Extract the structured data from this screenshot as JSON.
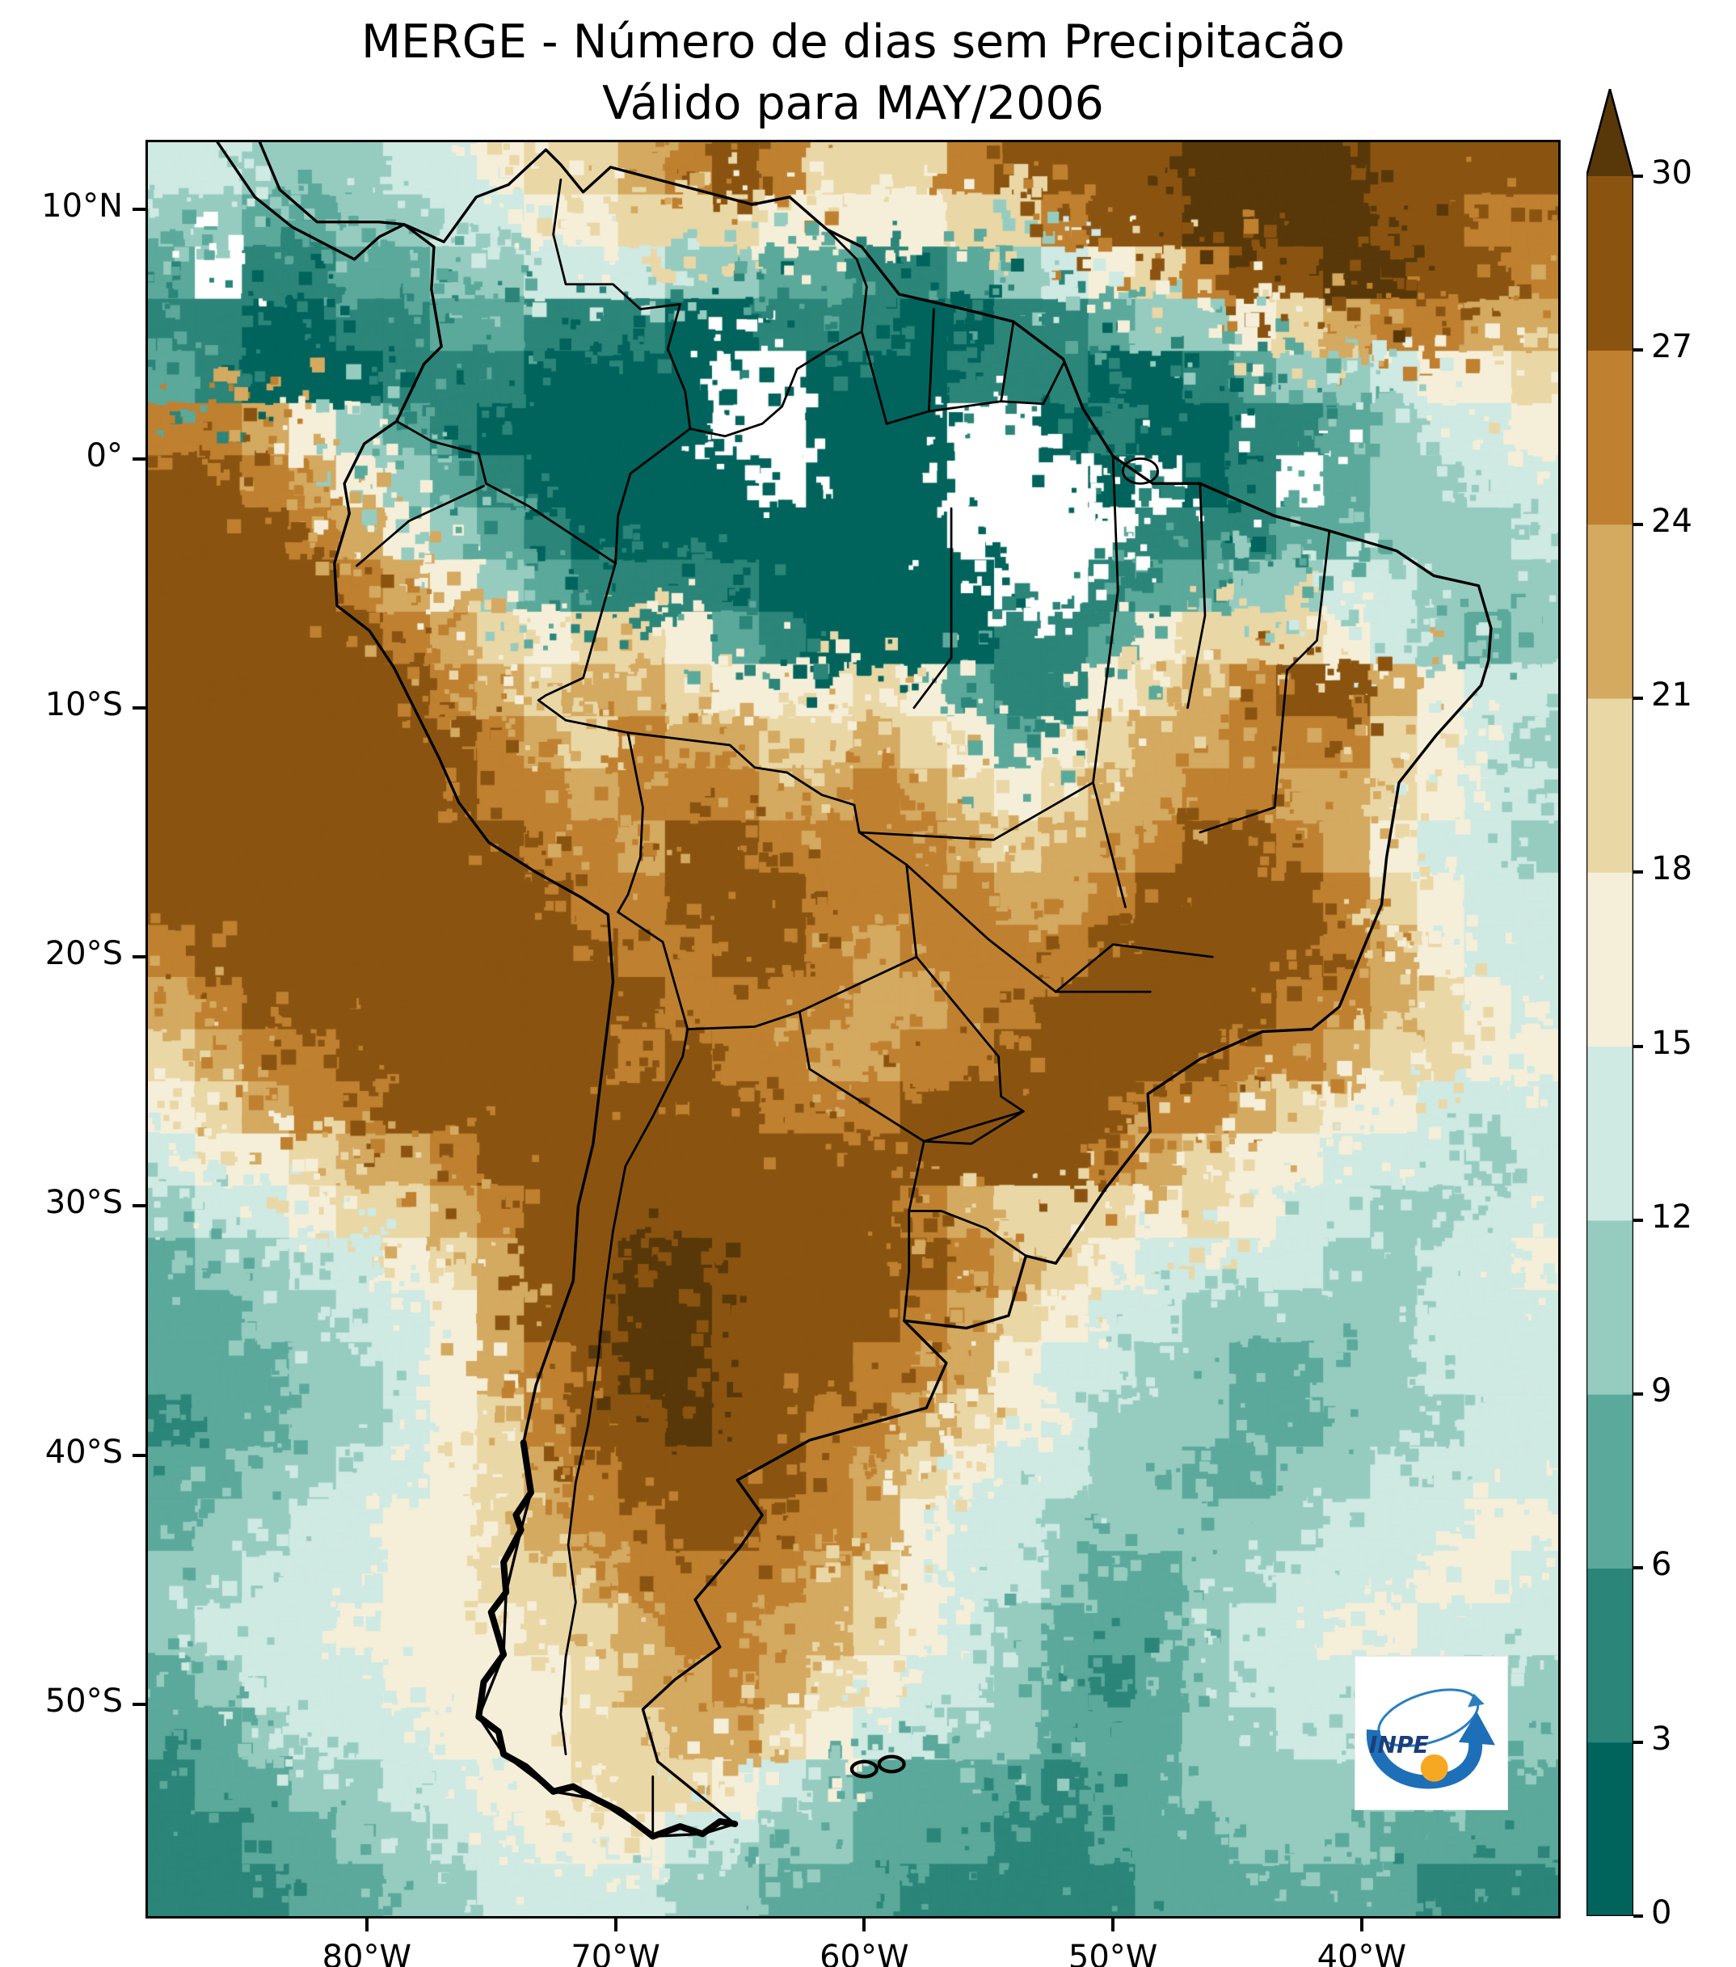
{
  "title": {
    "line1": "MERGE - Número de dias sem Precipitacão",
    "line2": "Válido para MAY/2006"
  },
  "axes": {
    "lat": {
      "min": -58.5,
      "max": 12.7,
      "ticks": [
        {
          "value": 10,
          "label": "10°N"
        },
        {
          "value": 0,
          "label": "0°"
        },
        {
          "value": -10,
          "label": "10°S"
        },
        {
          "value": -20,
          "label": "20°S"
        },
        {
          "value": -30,
          "label": "30°S"
        },
        {
          "value": -40,
          "label": "40°S"
        },
        {
          "value": -50,
          "label": "50°S"
        }
      ]
    },
    "lon": {
      "min": -88.8,
      "max": -32.1,
      "ticks": [
        {
          "value": -80,
          "label": "80°W"
        },
        {
          "value": -70,
          "label": "70°W"
        },
        {
          "value": -60,
          "label": "60°W"
        },
        {
          "value": -50,
          "label": "50°W"
        },
        {
          "value": -40,
          "label": "40°W"
        }
      ]
    }
  },
  "colorbar": {
    "min": 0,
    "max": 30,
    "ticks": [
      0,
      3,
      6,
      9,
      12,
      15,
      18,
      21,
      24,
      27,
      30
    ],
    "band_colors": [
      "#00645c",
      "#2b8579",
      "#5ba99b",
      "#96ccc0",
      "#cfe9e3",
      "#f5efd9",
      "#ead7a6",
      "#d4a960",
      "#bf8030",
      "#8a5410"
    ],
    "over_color": "#583808",
    "nodata_color": "#ffffff"
  },
  "map_grid": {
    "cols": 30,
    "rows": 34,
    "note": "chars 0-9 = color bands 0-3 ... 27-30 days, A = more than 30, W = no data (white)",
    "rows_data": [
      "4433344566789866689999AAAA9999",
      "3322334455666555566899AAAA9988",
      "2W11223344433221123456899AA998",
      "110011221110011100112335678877",
      "210001110000WW0001110012334556",
      "887532100000WW000WW01001123445",
      "9987532100000W000WWW0W01W23344",
      "99987532100000000WWWW111223334",
      "999987532111100000WW1223344333",
      "999998765665210000112566654323",
      "999999876776555652115678997544",
      "999999987687766765256778886543",
      "999999988788877876567788776544",
      "999999998879988887677899875443",
      "999999999889998888778999986544",
      "899999999988998788889999987544",
      "789999999998888778899999887654",
      "678899999989887788999998876655",
      "567889999999988899999887655444",
      "455677899999999999998765544434",
      "344566789999999987666565443344",
      "2334456799AA999998765444433445",
      "2233445799AA999987654433333444",
      "2223345789AA999887544332233444",
      "12233456899A998876543332233344",
      "223344567899998765443322334444",
      "233445567889988754433333344455",
      "334445566788887654432233444554",
      "344455556678877654322234455444",
      "234445555677876544321234444433",
      "223444555667765443322233443333",
      "122334455666543222212233333322",
      "112233445554433222112223332222",
      "111223344443322211111222222111"
    ]
  },
  "logo": {
    "text": "INPE",
    "accent_blue": "#1d6fb8",
    "accent_orange": "#f7a823"
  }
}
